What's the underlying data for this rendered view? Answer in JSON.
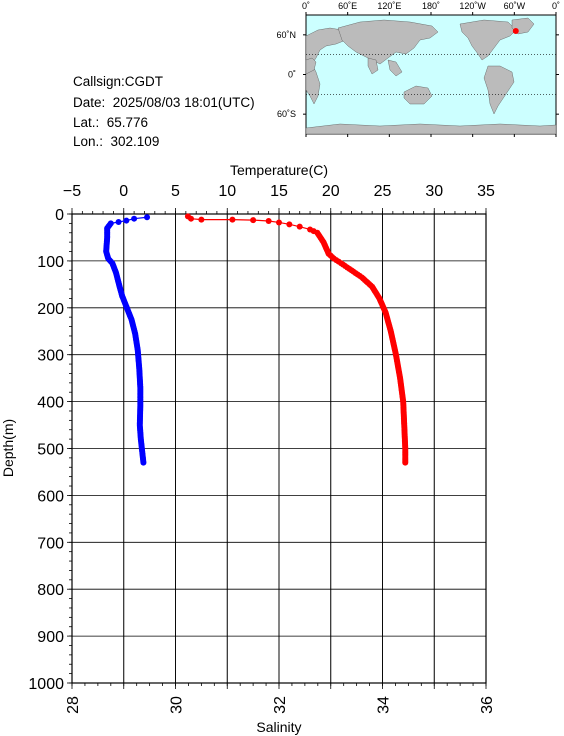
{
  "info": {
    "callsign": "Callsign:CGDT",
    "date": "Date:  2025/08/03 18:01(UTC)",
    "lat": "Lat.:  65.776",
    "lon": "Lon.:  302.109"
  },
  "map": {
    "lon_labels": [
      "0˚",
      "60˚E",
      "120˚E",
      "180˚",
      "120˚W",
      "60˚W",
      "0˚"
    ],
    "lat_labels": [
      "60˚N",
      "0˚",
      "60˚S"
    ],
    "ocean_color": "#ccffff",
    "land_color": "#bbbbbb",
    "marker_color": "#ff0000",
    "station": {
      "lon": 302.109,
      "lat": 65.776
    }
  },
  "chart_data": {
    "type": "line",
    "y": {
      "label": "Depth(m)",
      "range": [
        0,
        1000
      ],
      "ticks": [
        "0",
        "100",
        "200",
        "300",
        "400",
        "500",
        "600",
        "700",
        "800",
        "900",
        "1000"
      ],
      "inverted": true
    },
    "x_top": {
      "label": "Temperature(C)",
      "range": [
        -5,
        35
      ],
      "ticks": [
        "−5",
        "0",
        "5",
        "10",
        "15",
        "20",
        "25",
        "30",
        "35"
      ]
    },
    "x_bottom": {
      "label": "Salinity",
      "range": [
        28,
        36
      ],
      "ticks": [
        "28",
        "30",
        "32",
        "34",
        "36"
      ]
    },
    "grid": true,
    "series": [
      {
        "color": "#ff0000",
        "axis": "top",
        "points": [
          [
            6.2,
            5
          ],
          [
            6.5,
            10
          ],
          [
            7.5,
            12
          ],
          [
            10.5,
            12
          ],
          [
            12.5,
            13
          ],
          [
            14,
            15
          ],
          [
            15,
            18
          ],
          [
            16,
            22
          ],
          [
            17,
            27
          ],
          [
            18,
            33
          ],
          [
            18.7,
            40
          ],
          [
            19,
            50
          ],
          [
            19.3,
            60
          ],
          [
            19.5,
            70
          ],
          [
            19.8,
            85
          ],
          [
            20.3,
            95
          ],
          [
            21,
            105
          ],
          [
            22,
            120
          ],
          [
            23,
            135
          ],
          [
            24,
            155
          ],
          [
            24.7,
            180
          ],
          [
            25.3,
            210
          ],
          [
            25.8,
            250
          ],
          [
            26.3,
            300
          ],
          [
            26.7,
            350
          ],
          [
            27,
            400
          ],
          [
            27.1,
            450
          ],
          [
            27.2,
            500
          ],
          [
            27.2,
            530
          ]
        ]
      },
      {
        "color": "#0000ff",
        "axis": "bottom",
        "points": [
          [
            29.45,
            7
          ],
          [
            29.2,
            10
          ],
          [
            29.05,
            14
          ],
          [
            28.9,
            17
          ],
          [
            28.75,
            20
          ],
          [
            28.68,
            30
          ],
          [
            28.68,
            50
          ],
          [
            28.66,
            80
          ],
          [
            28.7,
            95
          ],
          [
            28.78,
            105
          ],
          [
            28.85,
            125
          ],
          [
            28.92,
            155
          ],
          [
            28.97,
            175
          ],
          [
            29.06,
            200
          ],
          [
            29.15,
            225
          ],
          [
            29.22,
            255
          ],
          [
            29.27,
            290
          ],
          [
            29.3,
            330
          ],
          [
            29.32,
            370
          ],
          [
            29.32,
            410
          ],
          [
            29.31,
            450
          ],
          [
            29.33,
            480
          ],
          [
            29.36,
            510
          ],
          [
            29.38,
            530
          ]
        ]
      }
    ]
  }
}
